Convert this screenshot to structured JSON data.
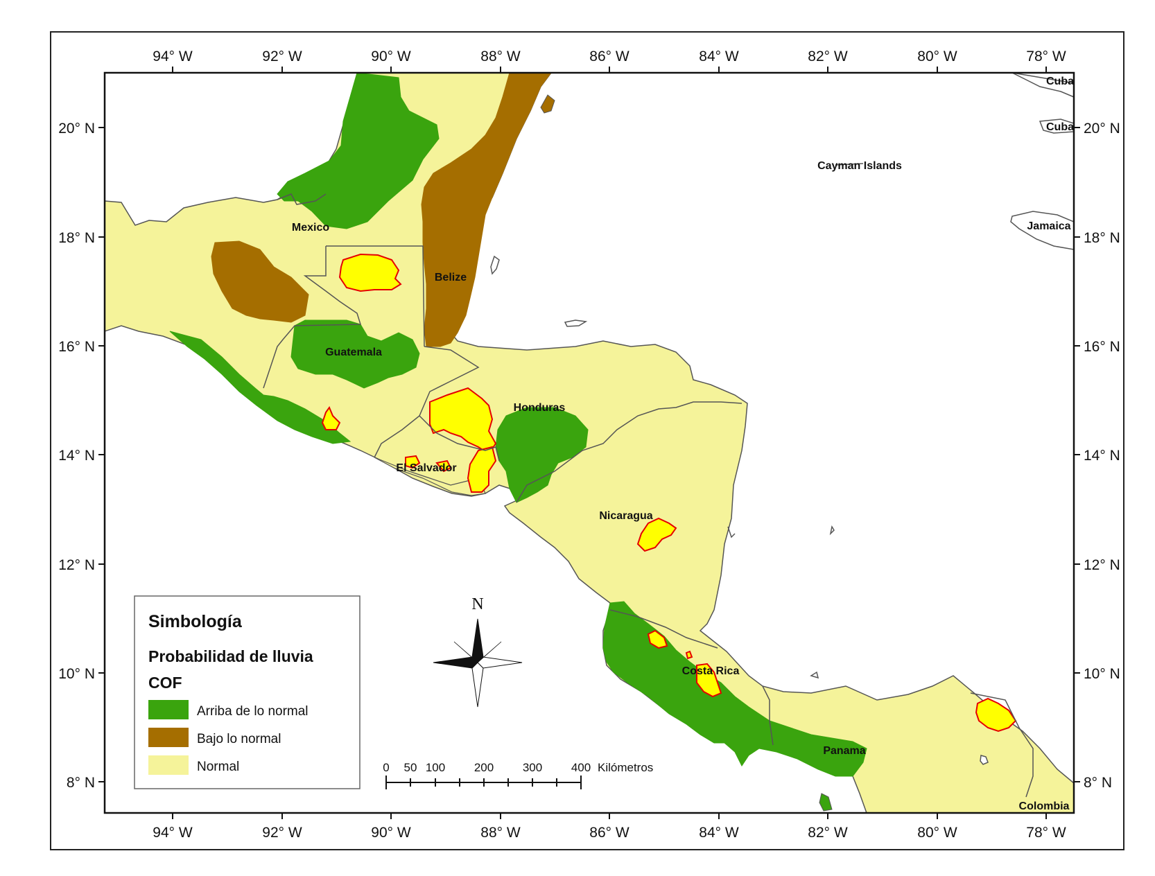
{
  "map": {
    "lon_labels": [
      "94° W",
      "92° W",
      "90° W",
      "88° W",
      "86° W",
      "84° W",
      "82° W",
      "80° W",
      "78° W"
    ],
    "lat_labels": [
      "20° N",
      "18° N",
      "16° N",
      "14° N",
      "12° N",
      "10° N",
      "8° N"
    ],
    "countries": {
      "mexico": "Mexico",
      "belize": "Belize",
      "guatemala": "Guatemala",
      "honduras": "Honduras",
      "el_salvador": "El Salvador",
      "nicaragua": "Nicaragua",
      "costa_rica": "Costa Rica",
      "panama": "Panama",
      "colombia": "Colombia",
      "cuba_1": "Cuba",
      "cuba_2": "Cuba",
      "jamaica": "Jamaica",
      "cayman": "Cayman Islands"
    },
    "colors": {
      "above_normal": "#3aa40e",
      "below_normal": "#a56e00",
      "normal": "#f5f39a",
      "highlight_fill": "#ffff00",
      "highlight_stroke": "#e60000",
      "sea": "#ffffff"
    }
  },
  "legend": {
    "title": "Simbología",
    "subtitle": "Probabilidad de lluvia",
    "group": "COF",
    "items": [
      {
        "label": "Arriba de lo normal",
        "color": "#3aa40e"
      },
      {
        "label": "Bajo lo normal",
        "color": "#a56e00"
      },
      {
        "label": "Normal",
        "color": "#f5f39a"
      }
    ]
  },
  "scale_bar": {
    "labels": [
      "0",
      "50",
      "100",
      "200",
      "300",
      "400"
    ],
    "unit": "Kilómetros"
  },
  "north_arrow": {
    "label": "N"
  }
}
